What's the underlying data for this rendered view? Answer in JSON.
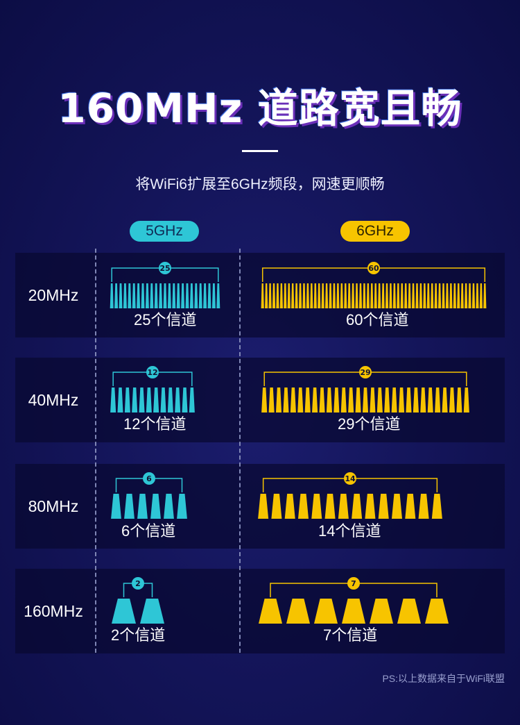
{
  "header": {
    "title": "160MHz 道路宽且畅",
    "subtitle": "将WiFi6扩展至6GHz频段，网速更顺畅"
  },
  "bands": {
    "band_5": "5GHz",
    "band_6": "6GHz"
  },
  "colors": {
    "band_5": "#2ec6d6",
    "band_6": "#f7c400",
    "background": "#14155a"
  },
  "rows": [
    {
      "label": "20MHz",
      "band_5": {
        "channels": 25,
        "badge": "25",
        "text": "25个信道"
      },
      "band_6": {
        "channels": 60,
        "badge": "60",
        "text": "60个信道"
      }
    },
    {
      "label": "40MHz",
      "band_5": {
        "channels": 12,
        "badge": "12",
        "text": "12个信道"
      },
      "band_6": {
        "channels": 29,
        "badge": "29",
        "text": "29个信道"
      }
    },
    {
      "label": "80MHz",
      "band_5": {
        "channels": 6,
        "badge": "6",
        "text": "6个信道"
      },
      "band_6": {
        "channels": 14,
        "badge": "14",
        "text": "14个信道"
      }
    },
    {
      "label": "160MHz",
      "band_5": {
        "channels": 2,
        "badge": "2",
        "text": "2个信道"
      },
      "band_6": {
        "channels": 7,
        "badge": "7",
        "text": "7个信道"
      }
    }
  ],
  "footnote": "PS:以上数据来自于WiFi联盟"
}
